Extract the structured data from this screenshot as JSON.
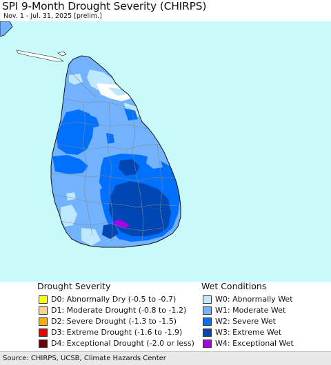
{
  "header": {
    "title": "SPI 9-Month Drought Severity (CHIRPS)",
    "subtitle": "Nov. 1 - Jul. 31, 2025 [prelim.]"
  },
  "map": {
    "ocean_color": "#c9fafa",
    "land_color": "#ffffff",
    "boundary_color": "#888888",
    "coast_color": "#111111"
  },
  "legend": {
    "drought": {
      "title": "Drought Severity",
      "items": [
        {
          "label": "D0: Abnormally Dry (-0.5 to -0.7)",
          "color": "#ffff00"
        },
        {
          "label": "D1: Moderate Drought (-0.8 to -1.2)",
          "color": "#fcd38a"
        },
        {
          "label": "D2: Severe Drought (-1.3 to -1.5)",
          "color": "#ffaa00"
        },
        {
          "label": "D3: Extreme Drought (-1.6 to -1.9)",
          "color": "#e60000"
        },
        {
          "label": "D4: Exceptional Drought (-2.0 or less)",
          "color": "#730000"
        }
      ]
    },
    "wet": {
      "title": "Wet Conditions",
      "items": [
        {
          "label": "W0: Abnormally Wet",
          "color": "#bee8ff"
        },
        {
          "label": "W1: Moderate Wet",
          "color": "#73b2ff"
        },
        {
          "label": "W2: Severe Wet",
          "color": "#0070ff"
        },
        {
          "label": "W3: Extreme Wet",
          "color": "#0047b3"
        },
        {
          "label": "W4: Exceptional Wet",
          "color": "#a900e6"
        }
      ]
    }
  },
  "footer": {
    "source": "Source: CHIRPS, UCSB, Climate Hazards Center"
  }
}
